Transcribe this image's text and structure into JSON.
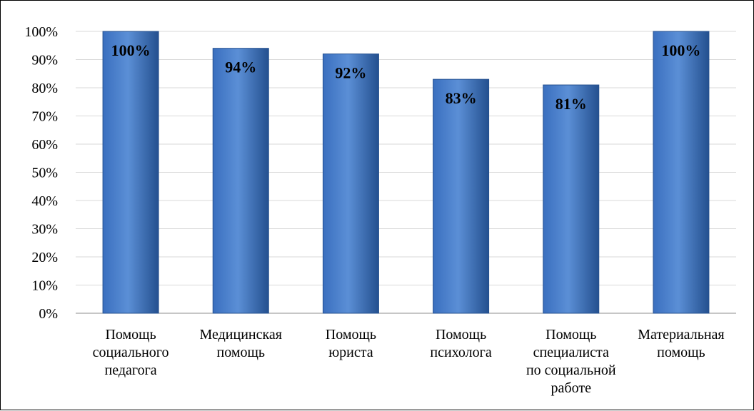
{
  "chart_data": {
    "type": "bar",
    "categories": [
      "Помощь социального педагога",
      "Медицинская помощь",
      "Помощь юриста",
      "Помощь психолога",
      "Помощь специалиста по социальной работе",
      "Материальная помощь"
    ],
    "category_lines": [
      [
        "Помощь",
        "социального",
        "педагога"
      ],
      [
        "Медицинская",
        "помощь"
      ],
      [
        "Помощь",
        "юриста"
      ],
      [
        "Помощь",
        "психолога"
      ],
      [
        "Помощь",
        "специалиста",
        "по социальной",
        "работе"
      ],
      [
        "Материальная",
        "помощь"
      ]
    ],
    "values": [
      100,
      94,
      92,
      83,
      81,
      100
    ],
    "data_labels": [
      "100%",
      "94%",
      "92%",
      "83%",
      "81%",
      "100%"
    ],
    "y_ticks": [
      "0%",
      "10%",
      "20%",
      "30%",
      "40%",
      "50%",
      "60%",
      "70%",
      "80%",
      "90%",
      "100%"
    ],
    "ylim": [
      0,
      100
    ],
    "grid": true,
    "legend": "none",
    "colors": {
      "bar_light": "#5b8fd6",
      "bar_mid": "#3a6fbf",
      "bar_dark": "#24508f",
      "grid": "#d9d9d9",
      "axis": "#8c8c8c"
    }
  }
}
